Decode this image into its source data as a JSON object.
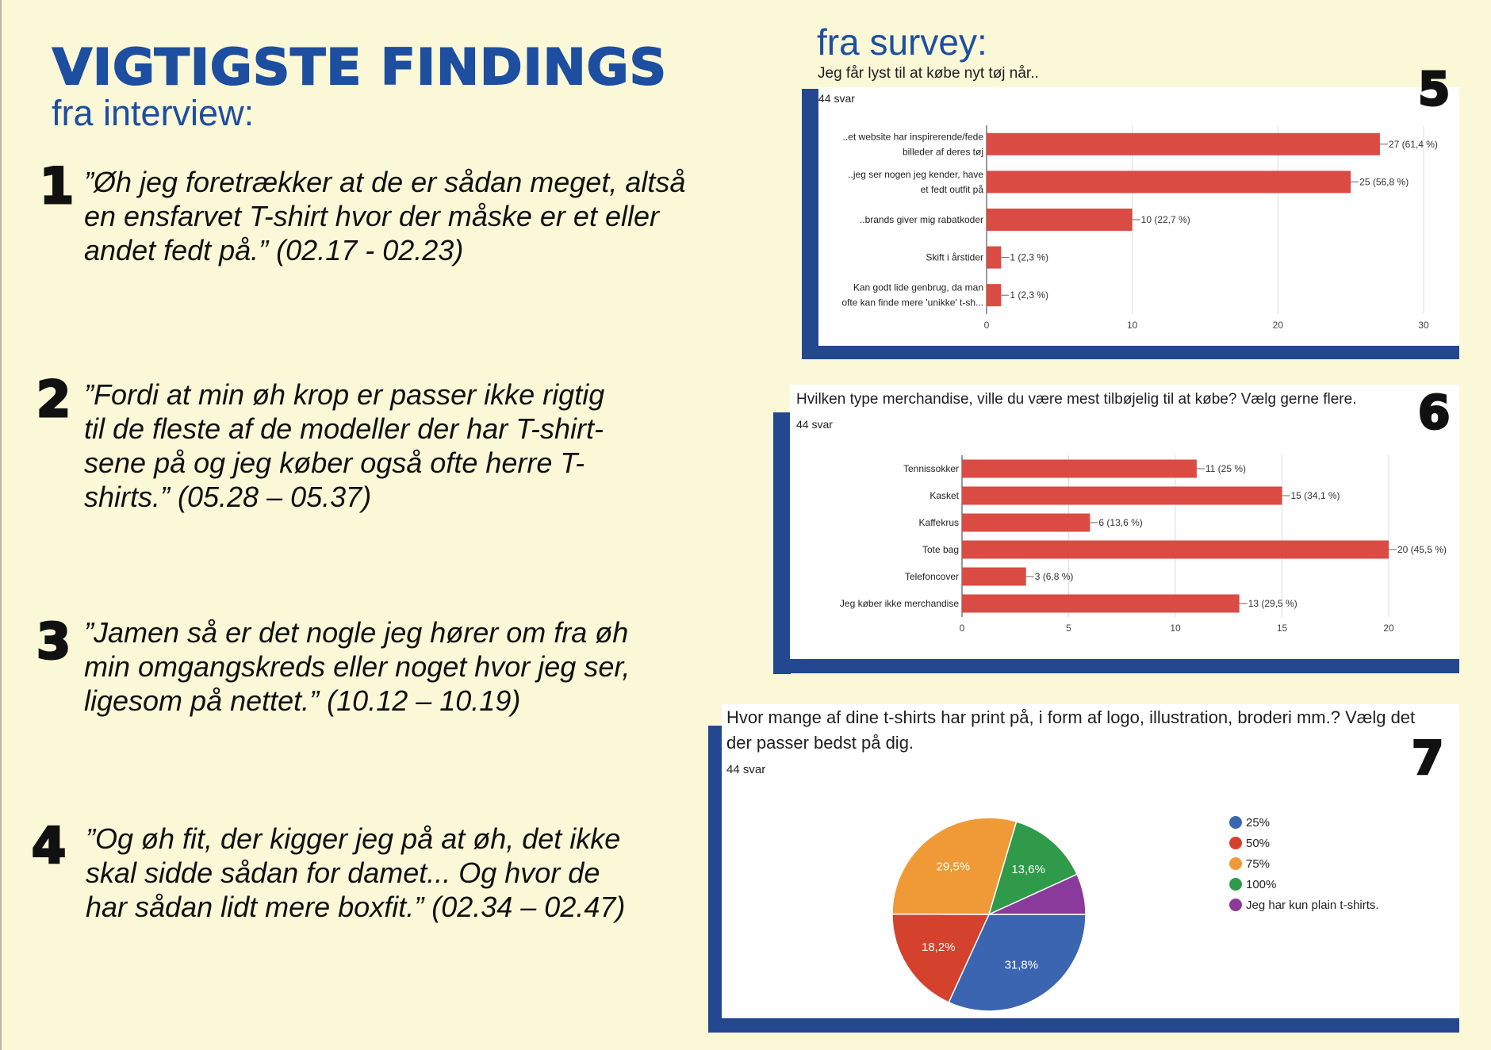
{
  "interview": {
    "title": "VIGTIGSTE FINDINGS",
    "subtitle": "fra interview:",
    "findings": [
      {
        "num": "1",
        "text": "”Øh jeg foretrækker at de er sådan meget, altså en ensfarvet T-shirt hvor der måske er et eller andet fedt på.” (02.17 - 02.23)"
      },
      {
        "num": "2",
        "text": "”Fordi at min øh krop er passer ikke rigtig til de fleste af de modeller der har T-shirt-sene på og jeg køber også ofte herre T-shirts.” (05.28 – 05.37)"
      },
      {
        "num": "3",
        "text": "”Jamen så er det nogle jeg hører om fra øh min omgangskreds eller noget hvor jeg ser, ligesom på nettet.” (10.12 – 10.19)"
      },
      {
        "num": "4",
        "text": "”Og øh fit, der kigger jeg på at øh, det ikke skal sidde sådan for damet... Og hvor de har sådan lidt mere boxfit.” (02.34 – 02.47)"
      }
    ]
  },
  "survey": {
    "subtitle": "fra survey:",
    "colors": {
      "bar": "#d94b43",
      "frame": "#24488f",
      "accent": "#1d4ea0"
    }
  },
  "chart_data": [
    {
      "type": "bar",
      "orientation": "horizontal",
      "number": "5",
      "title": "Jeg får lyst til at købe nyt tøj når..",
      "count_label": "44 svar",
      "categories": [
        [
          "..et website har inspirerende/fede",
          "billeder af deres tøj"
        ],
        [
          "..jeg ser nogen jeg kender, have",
          "et fedt outfit på"
        ],
        [
          "..brands giver mig rabatkoder"
        ],
        [
          "Skift i årstider"
        ],
        [
          "Kan godt lide genbrug, da man",
          "ofte kan finde mere 'unikke' t-sh..."
        ]
      ],
      "values": [
        27,
        25,
        10,
        1,
        1
      ],
      "data_labels": [
        "27 (61,4 %)",
        "25 (56,8 %)",
        "10 (22,7 %)",
        "1 (2,3 %)",
        "1 (2,3 %)"
      ],
      "xlim": [
        0,
        30
      ],
      "ticks": [
        0,
        10,
        20,
        30
      ],
      "grid": true
    },
    {
      "type": "bar",
      "orientation": "horizontal",
      "number": "6",
      "title": "Hvilken type merchandise, ville du være mest tilbøjelig til at købe? Vælg gerne flere.",
      "count_label": "44 svar",
      "categories": [
        [
          "Tennissokker"
        ],
        [
          "Kasket"
        ],
        [
          "Kaffekrus"
        ],
        [
          "Tote bag"
        ],
        [
          "Telefoncover"
        ],
        [
          "Jeg køber ikke merchandise"
        ]
      ],
      "values": [
        11,
        15,
        6,
        20,
        3,
        13
      ],
      "data_labels": [
        "11 (25 %)",
        "15 (34,1 %)",
        "6 (13,6 %)",
        "20 (45,5 %)",
        "3 (6,8 %)",
        "13 (29,5 %)"
      ],
      "xlim": [
        0,
        20
      ],
      "ticks": [
        0,
        5,
        10,
        15,
        20
      ],
      "grid": true
    },
    {
      "type": "pie",
      "number": "7",
      "title_lines": [
        "Hvor mange af dine t-shirts har print på, i form af logo, illustration, broderi mm.? Vælg det",
        "der passer bedst på dig."
      ],
      "count_label": "44 svar",
      "slices": [
        {
          "label": "25%",
          "value": 31.8,
          "text": "31,8%",
          "color": "#3b65b0"
        },
        {
          "label": "50%",
          "value": 18.2,
          "text": "18,2%",
          "color": "#d4412d"
        },
        {
          "label": "75%",
          "value": 29.5,
          "text": "29,5%",
          "color": "#ef9a37"
        },
        {
          "label": "100%",
          "value": 13.6,
          "text": "13,6%",
          "color": "#2f9a49"
        },
        {
          "label": "Jeg har kun plain t-shirts.",
          "value": 6.8,
          "text": "",
          "color": "#8a3a9a"
        }
      ],
      "legend_placement": "right"
    }
  ]
}
